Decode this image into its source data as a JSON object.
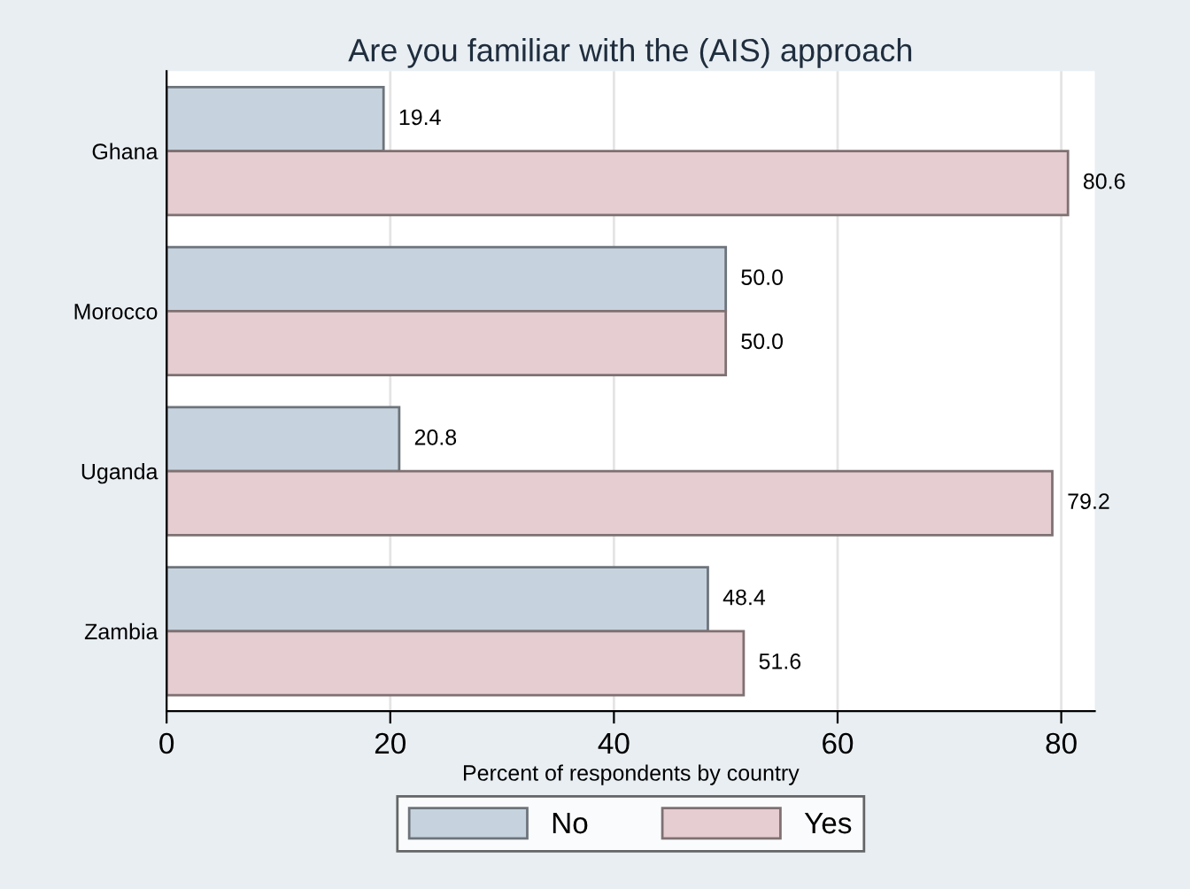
{
  "chart_data": {
    "type": "bar",
    "orientation": "horizontal",
    "title": "Are you familiar with the (AIS) approach",
    "xlabel": "Percent of respondents by country",
    "categories": [
      "Ghana",
      "Morocco",
      "Uganda",
      "Zambia"
    ],
    "series": [
      {
        "name": "No",
        "color": "#c6d3df",
        "values": [
          19.4,
          50.0,
          20.8,
          48.4
        ],
        "value_labels": [
          "19.4",
          "50.0",
          "20.8",
          "48.4"
        ]
      },
      {
        "name": "Yes",
        "color": "#e6cdd1",
        "values": [
          80.6,
          50.0,
          79.2,
          51.6
        ],
        "value_labels": [
          "80.6",
          "50.0",
          "79.2",
          "51.6"
        ]
      }
    ],
    "xlim": [
      0,
      83
    ],
    "xticks": [
      0,
      20,
      40,
      60,
      80
    ],
    "grid": "x",
    "legend": "bottom"
  }
}
